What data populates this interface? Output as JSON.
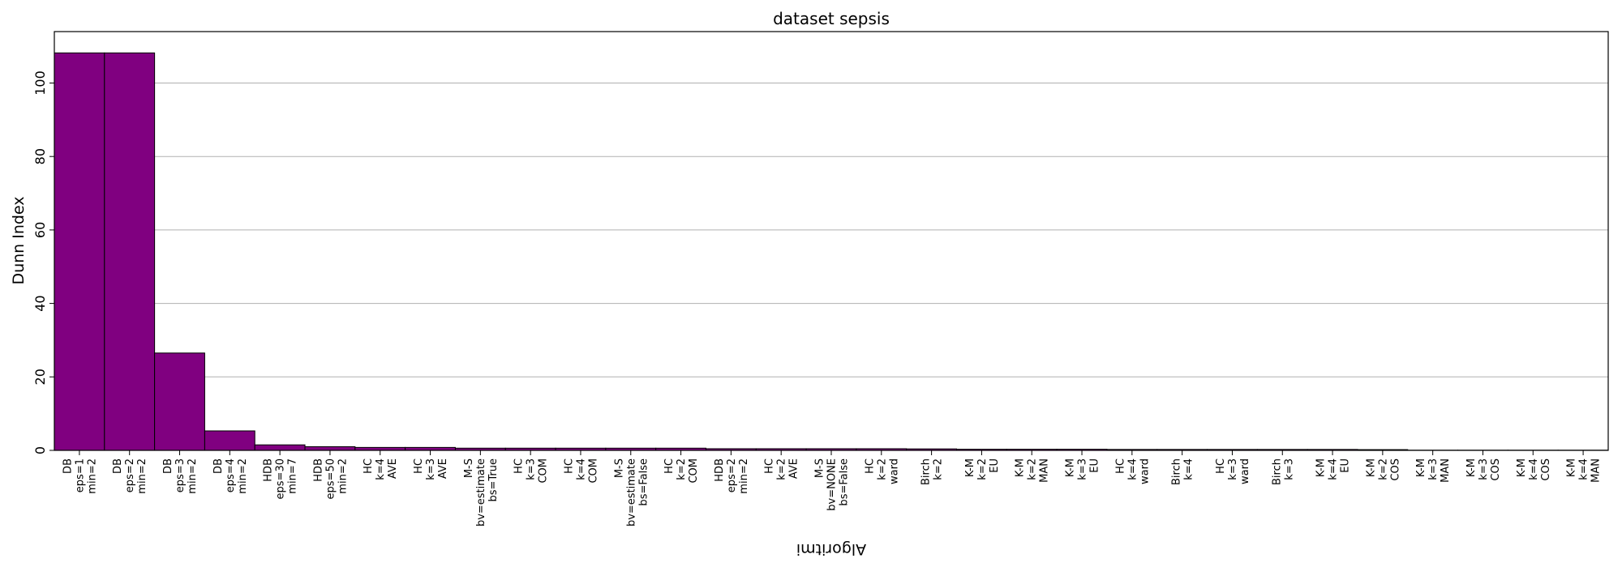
{
  "chart_data": {
    "type": "bar",
    "title": "dataset sepsis",
    "xlabel": "Algoritmi",
    "ylabel": "Dunn Index",
    "ylim": [
      0,
      114
    ],
    "yticks": [
      0,
      20,
      40,
      60,
      80,
      100
    ],
    "grid": "y",
    "bar_color": "#800080",
    "edge_color": "#000000",
    "categories": [
      [
        "DB",
        "eps=1",
        "min=2"
      ],
      [
        "DB",
        "eps=2",
        "min=2"
      ],
      [
        "DB",
        "eps=3",
        "min=2"
      ],
      [
        "DB",
        "eps=4",
        "min=2"
      ],
      [
        "HDB",
        "eps=30",
        "min=7"
      ],
      [
        "HDB",
        "eps=50",
        "min=2"
      ],
      [
        "HC",
        "k=4",
        "AVE"
      ],
      [
        "HC",
        "k=3",
        "AVE"
      ],
      [
        "M-S",
        "bv=estimate",
        "bs=True"
      ],
      [
        "HC",
        "k=3",
        "COM"
      ],
      [
        "HC",
        "k=4",
        "COM"
      ],
      [
        "M-S",
        "bv=estimate",
        "bs=False"
      ],
      [
        "HC",
        "k=2",
        "COM"
      ],
      [
        "HDB",
        "eps=2",
        "min=2"
      ],
      [
        "HC",
        "k=2",
        "AVE"
      ],
      [
        "M-S",
        "bv=NONE",
        "bs=False"
      ],
      [
        "HC",
        "k=2",
        "ward"
      ],
      [
        "Birch",
        "k=2"
      ],
      [
        "K-M",
        "k=2",
        "EU"
      ],
      [
        "K-M",
        "k=2",
        "MAN"
      ],
      [
        "K-M",
        "k=3",
        "EU"
      ],
      [
        "HC",
        "k=4",
        "ward"
      ],
      [
        "Birch",
        "k=4"
      ],
      [
        "HC",
        "k=3",
        "ward"
      ],
      [
        "Birch",
        "k=3"
      ],
      [
        "K-M",
        "k=4",
        "EU"
      ],
      [
        "K-M",
        "k=2",
        "COS"
      ],
      [
        "K-M",
        "k=3",
        "MAN"
      ],
      [
        "K-M",
        "k=3",
        "COS"
      ],
      [
        "K-M",
        "k=4",
        "COS"
      ],
      [
        "K-M",
        "k=4",
        "MAN"
      ]
    ],
    "values": [
      108.2,
      108.2,
      26.5,
      5.3,
      1.5,
      1.0,
      0.8,
      0.8,
      0.6,
      0.6,
      0.6,
      0.6,
      0.6,
      0.45,
      0.45,
      0.45,
      0.45,
      0.4,
      0.3,
      0.3,
      0.3,
      0.25,
      0.25,
      0.25,
      0.25,
      0.25,
      0.2,
      0.05,
      0.05,
      0.05,
      0.05
    ]
  }
}
